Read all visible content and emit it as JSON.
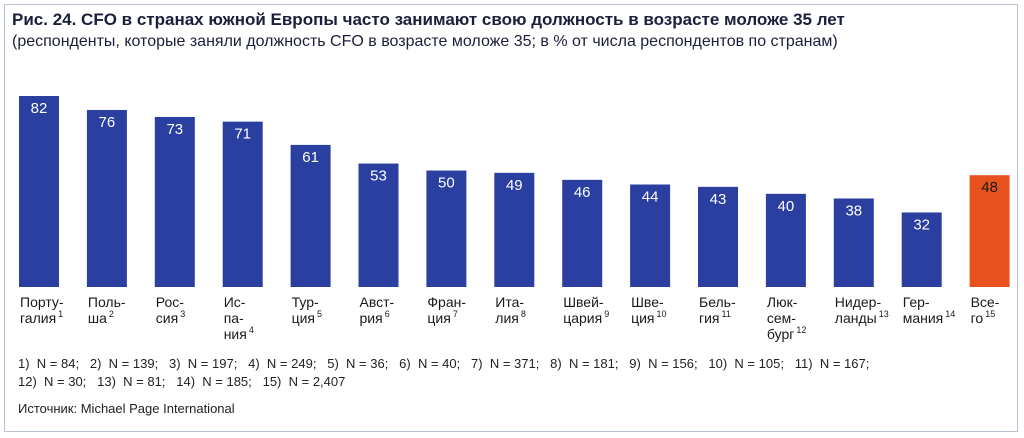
{
  "title": "Рис. 24. CFO в странах южной Европы часто занимают свою должность в возрасте моложе 35 лет",
  "subtitle": "(респонденты, которые заняли должность CFO в возрасте моложе 35; в % от числа респондентов по странам)",
  "notes": {
    "line1": "1)  N = 84;   2)  N = 139;   3)  N = 197;   4)  N = 249;   5)  N = 36;   6)  N = 40;   7)  N = 371;   8)  N = 181;   9)  N = 156;   10)  N = 105;   11)  N = 167;",
    "line2": "12)  N = 30;   13)  N = 81;   14)  N = 185;   15)  N = 2,407"
  },
  "source": "Источник: Michael Page International",
  "colors": {
    "bar": "#2a3fa0",
    "total_bar": "#e8521e",
    "bar_value_text": "#ffffff",
    "total_value_text": "#1a1a1a"
  },
  "chart_data": {
    "type": "bar",
    "title": "",
    "xlabel": "",
    "ylabel": "",
    "ylim": [
      0,
      100
    ],
    "grid": false,
    "legend": "none",
    "categories": [
      {
        "label": [
          "Порту-",
          "галия"
        ],
        "sup": "1"
      },
      {
        "label": [
          "Поль-",
          "ша"
        ],
        "sup": "2"
      },
      {
        "label": [
          "Рос-",
          "сия"
        ],
        "sup": "3"
      },
      {
        "label": [
          "Ис-",
          "па-",
          "ния"
        ],
        "sup": "4"
      },
      {
        "label": [
          "Тур-",
          "ция"
        ],
        "sup": "5"
      },
      {
        "label": [
          "Авст-",
          "рия"
        ],
        "sup": "6"
      },
      {
        "label": [
          "Фран-",
          "ция"
        ],
        "sup": "7"
      },
      {
        "label": [
          "Ита-",
          "лия"
        ],
        "sup": "8"
      },
      {
        "label": [
          "Швей-",
          "цария"
        ],
        "sup": "9"
      },
      {
        "label": [
          "Шве-",
          "ция"
        ],
        "sup": "10"
      },
      {
        "label": [
          "Бель-",
          "гия"
        ],
        "sup": "11"
      },
      {
        "label": [
          "Люк-",
          "сем-",
          "бург"
        ],
        "sup": "12"
      },
      {
        "label": [
          "Нидер-",
          "ланды"
        ],
        "sup": "13"
      },
      {
        "label": [
          "Гер-",
          "мания"
        ],
        "sup": "14"
      },
      {
        "label": [
          "Все-",
          "го"
        ],
        "sup": "15"
      }
    ],
    "values": [
      82,
      76,
      73,
      71,
      61,
      53,
      50,
      49,
      46,
      44,
      43,
      40,
      38,
      32,
      48
    ],
    "highlight_index": 14
  }
}
